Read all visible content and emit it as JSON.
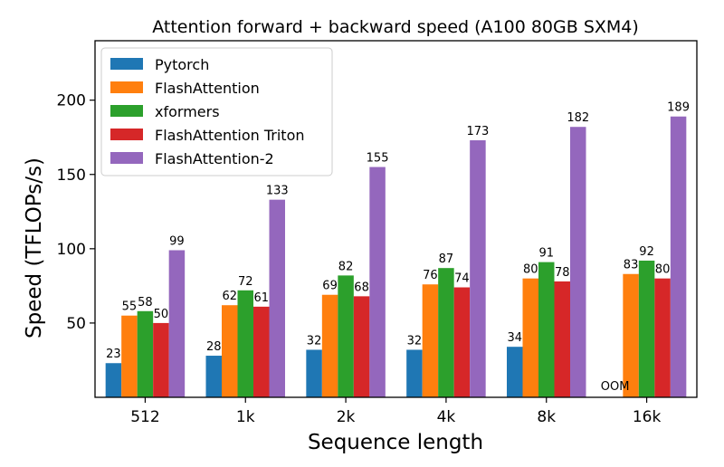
{
  "chart_data": {
    "type": "bar",
    "title": "Attention forward + backward speed (A100 80GB SXM4)",
    "xlabel": "Sequence length",
    "ylabel": "Speed (TFLOPs/s)",
    "categories": [
      "512",
      "1k",
      "2k",
      "4k",
      "8k",
      "16k"
    ],
    "yticks": [
      50,
      100,
      150,
      200
    ],
    "ylim": [
      0,
      240
    ],
    "grid": false,
    "legend_position": "top-left",
    "series": [
      {
        "name": "Pytorch",
        "color": "#1f77b4",
        "values": [
          23,
          28,
          32,
          32,
          34,
          null
        ],
        "labels": [
          "23",
          "28",
          "32",
          "32",
          "34",
          "OOM"
        ]
      },
      {
        "name": "FlashAttention",
        "color": "#ff7f0e",
        "values": [
          55,
          62,
          69,
          76,
          80,
          83
        ],
        "labels": [
          "55",
          "62",
          "69",
          "76",
          "80",
          "83"
        ]
      },
      {
        "name": "xformers",
        "color": "#2ca02c",
        "values": [
          58,
          72,
          82,
          87,
          91,
          92
        ],
        "labels": [
          "58",
          "72",
          "82",
          "87",
          "91",
          "92"
        ]
      },
      {
        "name": "FlashAttention Triton",
        "color": "#d62728",
        "values": [
          50,
          61,
          68,
          74,
          78,
          80
        ],
        "labels": [
          "50",
          "61",
          "68",
          "74",
          "78",
          "80"
        ]
      },
      {
        "name": "FlashAttention-2",
        "color": "#9467bd",
        "values": [
          99,
          133,
          155,
          173,
          182,
          189
        ],
        "labels": [
          "99",
          "133",
          "155",
          "173",
          "182",
          "189"
        ]
      }
    ]
  }
}
